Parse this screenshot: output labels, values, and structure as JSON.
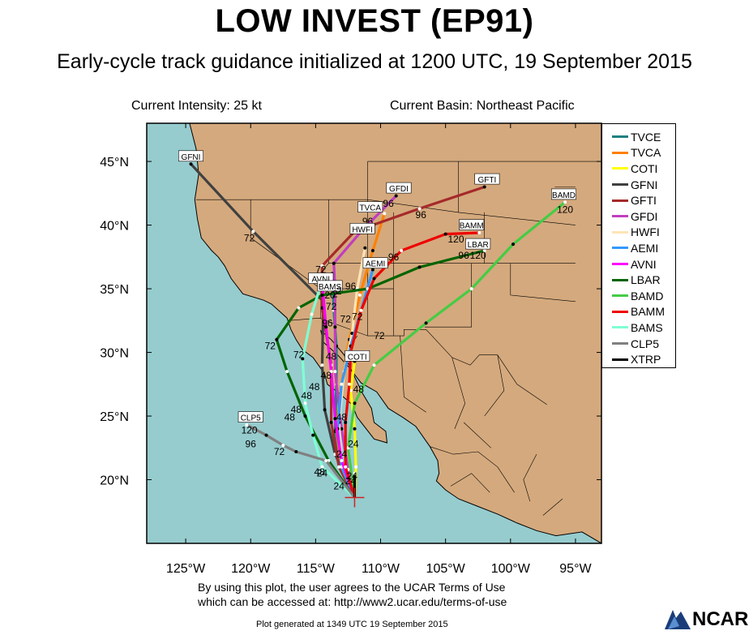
{
  "title": "LOW INVEST (EP91)",
  "subtitle": "Early-cycle track guidance initialized at 1200 UTC, 19 September 2015",
  "current_intensity": "Current Intensity: 25 kt",
  "current_basin": "Current Basin: Northeast Pacific",
  "terms_line1": "By using this plot, the user agrees to the UCAR Terms of Use",
  "terms_line2": "which can be accessed at: http://www2.ucar.edu/terms-of-use",
  "generated": "Plot generated at 1349 UTC   19 September 2015",
  "logo_text": "NCAR",
  "colors": {
    "ocean": "#96ccce",
    "land": "#d4a97d"
  },
  "chart_data": {
    "type": "line",
    "map_extent": {
      "lon": [
        -128,
        -93
      ],
      "lat": [
        15,
        48
      ]
    },
    "x_ticks": [
      "125°W",
      "120°W",
      "115°W",
      "110°W",
      "105°W",
      "100°W",
      "95°W"
    ],
    "x_tick_values": [
      -125,
      -120,
      -115,
      -110,
      -105,
      -100,
      -95
    ],
    "y_ticks": [
      "20°N",
      "25°N",
      "30°N",
      "35°N",
      "40°N",
      "45°N"
    ],
    "y_tick_values": [
      20,
      25,
      30,
      35,
      40,
      45
    ],
    "initial_position": {
      "lon": -112.0,
      "lat": 18.6
    },
    "series": [
      {
        "name": "TVCE",
        "color": "#1f8080",
        "points": [
          [
            -112.0,
            18.6
          ],
          [
            -113.0,
            20.8
          ],
          [
            -113.5,
            23.8
          ],
          [
            -113.4,
            27.5
          ],
          [
            -113.4,
            30.5
          ],
          [
            -113.6,
            33.3
          ],
          [
            -113.7,
            36.2
          ]
        ]
      },
      {
        "name": "TVCA",
        "color": "#ff8000",
        "points": [
          [
            -112.0,
            18.6
          ],
          [
            -113.0,
            20.8
          ],
          [
            -113.4,
            24.0
          ],
          [
            -113.0,
            27.5
          ],
          [
            -112.4,
            31.0
          ],
          [
            -111.6,
            34.5
          ],
          [
            -110.6,
            38.0
          ],
          [
            -109.7,
            40.9
          ]
        ],
        "labels": [
          {
            "text": "96",
            "lon": -111.0,
            "lat": 40.3
          },
          {
            "text": "TVCA",
            "lon": -110.8,
            "lat": 41.4,
            "boxed": true
          }
        ]
      },
      {
        "name": "COTI",
        "color": "#ffff00",
        "points": [
          [
            -112.0,
            18.6
          ],
          [
            -111.9,
            21.0
          ],
          [
            -112.0,
            24.0
          ],
          [
            -112.3,
            27.0
          ],
          [
            -112.0,
            29.3
          ],
          [
            -111.6,
            30.0
          ]
        ],
        "labels": [
          {
            "text": "COTI",
            "lon": -111.8,
            "lat": 29.7,
            "boxed": true
          }
        ]
      },
      {
        "name": "GFNI",
        "color": "#404040",
        "points": [
          [
            -112.0,
            18.6
          ],
          [
            -113.5,
            22.0
          ],
          [
            -114.3,
            25.5
          ],
          [
            -114.5,
            29.0
          ],
          [
            -114.4,
            34.0
          ],
          [
            -119.8,
            39.5
          ],
          [
            -124.6,
            44.8
          ]
        ],
        "labels": [
          {
            "text": "72",
            "lon": -120.1,
            "lat": 39.0
          },
          {
            "text": "GFNI",
            "lon": -124.6,
            "lat": 45.4,
            "boxed": true
          }
        ]
      },
      {
        "name": "GFTI",
        "color": "#a52a2a",
        "points": [
          [
            -112.0,
            18.6
          ],
          [
            -113.2,
            21.0
          ],
          [
            -113.8,
            24.5
          ],
          [
            -113.8,
            29.0
          ],
          [
            -114.5,
            33.5
          ],
          [
            -114.5,
            36.8
          ],
          [
            -112.0,
            39.5
          ],
          [
            -107.0,
            41.3
          ],
          [
            -102.0,
            43.0
          ]
        ],
        "labels": [
          {
            "text": "96",
            "lon": -106.9,
            "lat": 40.8
          },
          {
            "text": "GFTI",
            "lon": -101.8,
            "lat": 43.6,
            "boxed": true
          }
        ]
      },
      {
        "name": "GFDI",
        "color": "#bf3fbf",
        "points": [
          [
            -112.0,
            18.6
          ],
          [
            -112.5,
            20.8
          ],
          [
            -113.0,
            24.0
          ],
          [
            -113.5,
            28.5
          ],
          [
            -113.5,
            32.0
          ],
          [
            -113.5,
            35.0
          ],
          [
            -113.6,
            37.0
          ],
          [
            -111.5,
            39.5
          ],
          [
            -108.8,
            42.3
          ]
        ],
        "labels": [
          {
            "text": "96",
            "lon": -109.4,
            "lat": 41.7
          },
          {
            "text": "GFDI",
            "lon": -108.6,
            "lat": 42.9,
            "boxed": true
          }
        ]
      },
      {
        "name": "HWFI",
        "color": "#ffe4b5",
        "points": [
          [
            -112.0,
            18.6
          ],
          [
            -113.0,
            21.0
          ],
          [
            -113.2,
            24.5
          ],
          [
            -112.8,
            28.5
          ],
          [
            -112.2,
            31.5
          ],
          [
            -111.8,
            35.0
          ],
          [
            -111.2,
            38.2
          ]
        ],
        "labels": [
          {
            "text": "HWFI",
            "lon": -111.4,
            "lat": 39.7,
            "boxed": true
          }
        ]
      },
      {
        "name": "AEMI",
        "color": "#3399ff",
        "points": [
          [
            -112.0,
            18.6
          ],
          [
            -113.0,
            21.0
          ],
          [
            -113.3,
            24.0
          ],
          [
            -113.0,
            27.5
          ],
          [
            -112.3,
            30.5
          ],
          [
            -111.5,
            33.3
          ],
          [
            -110.6,
            36.5
          ]
        ],
        "labels": [
          {
            "text": "AEMI",
            "lon": -110.4,
            "lat": 37.0,
            "boxed": true
          }
        ]
      },
      {
        "name": "AVNI",
        "color": "#ff00ff",
        "points": [
          [
            -112.0,
            18.6
          ],
          [
            -113.0,
            21.5
          ],
          [
            -113.5,
            24.8
          ],
          [
            -113.8,
            28.5
          ],
          [
            -114.2,
            32.0
          ],
          [
            -114.5,
            35.5
          ]
        ],
        "labels": [
          {
            "text": "AVNI",
            "lon": -114.6,
            "lat": 35.8,
            "boxed": true
          }
        ]
      },
      {
        "name": "LBAR",
        "color": "#006400",
        "points": [
          [
            -112.0,
            18.6
          ],
          [
            -114.0,
            21.5
          ],
          [
            -115.8,
            25.0
          ],
          [
            -117.2,
            28.5
          ],
          [
            -118.0,
            31.0
          ],
          [
            -116.3,
            33.5
          ],
          [
            -114.5,
            34.5
          ],
          [
            -111.0,
            35.0
          ],
          [
            -107.0,
            36.7
          ],
          [
            -102.0,
            38.0
          ]
        ],
        "labels": [
          {
            "text": "72",
            "lon": -118.5,
            "lat": 30.5
          },
          {
            "text": "96",
            "lon": -103.6,
            "lat": 37.6
          },
          {
            "text": "120",
            "lon": -102.5,
            "lat": 37.6
          },
          {
            "text": "LBAR",
            "lon": -102.5,
            "lat": 38.5,
            "boxed": true
          }
        ]
      },
      {
        "name": "BAMD",
        "color": "#44cc44",
        "points": [
          [
            -112.0,
            18.6
          ],
          [
            -112.5,
            22.5
          ],
          [
            -112.0,
            26.0
          ],
          [
            -110.5,
            29.0
          ],
          [
            -106.5,
            32.3
          ],
          [
            -103.0,
            35.0
          ],
          [
            -99.8,
            38.5
          ],
          [
            -95.8,
            41.8
          ]
        ],
        "labels": [
          {
            "text": "72",
            "lon": -110.1,
            "lat": 31.3
          },
          {
            "text": "120",
            "lon": -95.8,
            "lat": 41.2
          },
          {
            "text": "BAMD",
            "lon": -95.9,
            "lat": 42.4,
            "boxed": true
          }
        ]
      },
      {
        "name": "BAMM",
        "color": "#ee0000",
        "points": [
          [
            -112.0,
            18.6
          ],
          [
            -112.7,
            21.0
          ],
          [
            -112.7,
            24.5
          ],
          [
            -112.4,
            27.5
          ],
          [
            -112.3,
            30.0
          ],
          [
            -111.5,
            33.3
          ],
          [
            -110.5,
            35.8
          ],
          [
            -108.4,
            38.0
          ],
          [
            -105.0,
            39.3
          ],
          [
            -102.4,
            39.4
          ]
        ],
        "labels": [
          {
            "text": "72",
            "lon": -111.8,
            "lat": 32.8
          },
          {
            "text": "96",
            "lon": -109.0,
            "lat": 37.5
          },
          {
            "text": "120",
            "lon": -104.2,
            "lat": 38.9
          },
          {
            "text": "BAMM",
            "lon": -103.0,
            "lat": 40.0,
            "boxed": true
          }
        ]
      },
      {
        "name": "BAMS",
        "color": "#7fffd4",
        "points": [
          [
            -112.0,
            18.6
          ],
          [
            -114.5,
            21.0
          ],
          [
            -115.2,
            23.5
          ],
          [
            -115.8,
            26.0
          ],
          [
            -116.0,
            29.5
          ],
          [
            -115.3,
            33.0
          ],
          [
            -114.7,
            35.0
          ]
        ],
        "labels": [
          {
            "text": "72",
            "lon": -116.3,
            "lat": 29.8
          },
          {
            "text": "48",
            "lon": -116.5,
            "lat": 25.5
          },
          {
            "text": "BAMS",
            "lon": -113.9,
            "lat": 35.2,
            "boxed": true
          }
        ]
      },
      {
        "name": "CLP5",
        "color": "#808080",
        "points": [
          [
            -112.0,
            18.6
          ],
          [
            -114.2,
            21.5
          ],
          [
            -116.5,
            22.2
          ],
          [
            -117.5,
            22.7
          ],
          [
            -118.8,
            23.5
          ],
          [
            -120.3,
            24.3
          ]
        ],
        "labels": [
          {
            "text": "72",
            "lon": -117.8,
            "lat": 22.2
          },
          {
            "text": "96",
            "lon": -120.0,
            "lat": 22.8
          },
          {
            "text": "120",
            "lon": -120.1,
            "lat": 23.9
          },
          {
            "text": "CLP5",
            "lon": -120.0,
            "lat": 24.9,
            "boxed": true
          }
        ]
      },
      {
        "name": "XTRP",
        "color": "#000000",
        "points": [
          [
            -112.0,
            18.6
          ],
          [
            -112.0,
            20.5
          ]
        ],
        "labels": [
          {
            "text": "24",
            "lon": -112.3,
            "lat": 19.9
          }
        ]
      }
    ],
    "extra_labels": [
      {
        "text": "72",
        "lon": -114.6,
        "lat": 36.5
      },
      {
        "text": "72",
        "lon": -113.8,
        "lat": 33.6
      },
      {
        "text": "96",
        "lon": -114.1,
        "lat": 32.3
      },
      {
        "text": "72",
        "lon": -112.7,
        "lat": 32.6
      },
      {
        "text": "96",
        "lon": -112.3,
        "lat": 35.2
      },
      {
        "text": "48",
        "lon": -113.8,
        "lat": 29.7
      },
      {
        "text": "48",
        "lon": -114.2,
        "lat": 28.2
      },
      {
        "text": "48",
        "lon": -115.1,
        "lat": 27.3
      },
      {
        "text": "48",
        "lon": -115.7,
        "lat": 26.6
      },
      {
        "text": "48",
        "lon": -117.0,
        "lat": 24.9
      },
      {
        "text": "48",
        "lon": -113.0,
        "lat": 24.9
      },
      {
        "text": "48",
        "lon": -111.7,
        "lat": 27.1
      },
      {
        "text": "24",
        "lon": -112.1,
        "lat": 22.8
      },
      {
        "text": "24",
        "lon": -113.0,
        "lat": 22.0
      },
      {
        "text": "24",
        "lon": -114.5,
        "lat": 20.5
      },
      {
        "text": "48",
        "lon": -114.7,
        "lat": 20.6
      },
      {
        "text": "24",
        "lon": -113.2,
        "lat": 19.5
      },
      {
        "text": "24",
        "lon": -112.2,
        "lat": 20.3
      },
      {
        "text": "20",
        "lon": -113.9,
        "lat": 34.5
      },
      {
        "text": "2",
        "lon": -113.5,
        "lat": 34.6
      },
      {
        "text": "2",
        "lon": -113.2,
        "lat": 34.8
      }
    ]
  }
}
